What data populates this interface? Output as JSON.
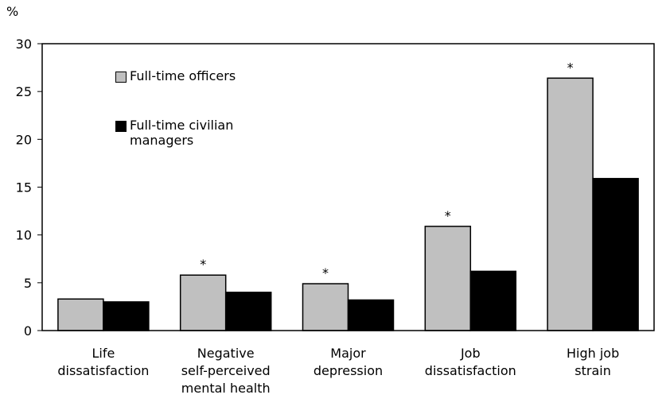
{
  "chart_data": {
    "type": "bar",
    "y_label": "%",
    "categories": [
      [
        "Life",
        "dissatisfaction"
      ],
      [
        "Negative",
        "self-perceived",
        "mental health"
      ],
      [
        "Major",
        "depression"
      ],
      [
        "Job",
        "dissatisfaction"
      ],
      [
        "High job",
        "strain"
      ]
    ],
    "series": [
      {
        "name": "Full-time officers",
        "color": "#c0c0c0",
        "values": [
          3.3,
          5.8,
          4.9,
          10.9,
          26.4
        ],
        "notes": [
          null,
          "*",
          "*",
          "*",
          "*"
        ]
      },
      {
        "name": "Full-time civilian managers",
        "color": "#000000",
        "values": [
          3.0,
          4.0,
          3.2,
          6.2,
          15.9
        ]
      }
    ],
    "ylim": [
      0,
      30
    ],
    "yticks": [
      0,
      5,
      10,
      15,
      20,
      25,
      30
    ],
    "grid": false
  }
}
